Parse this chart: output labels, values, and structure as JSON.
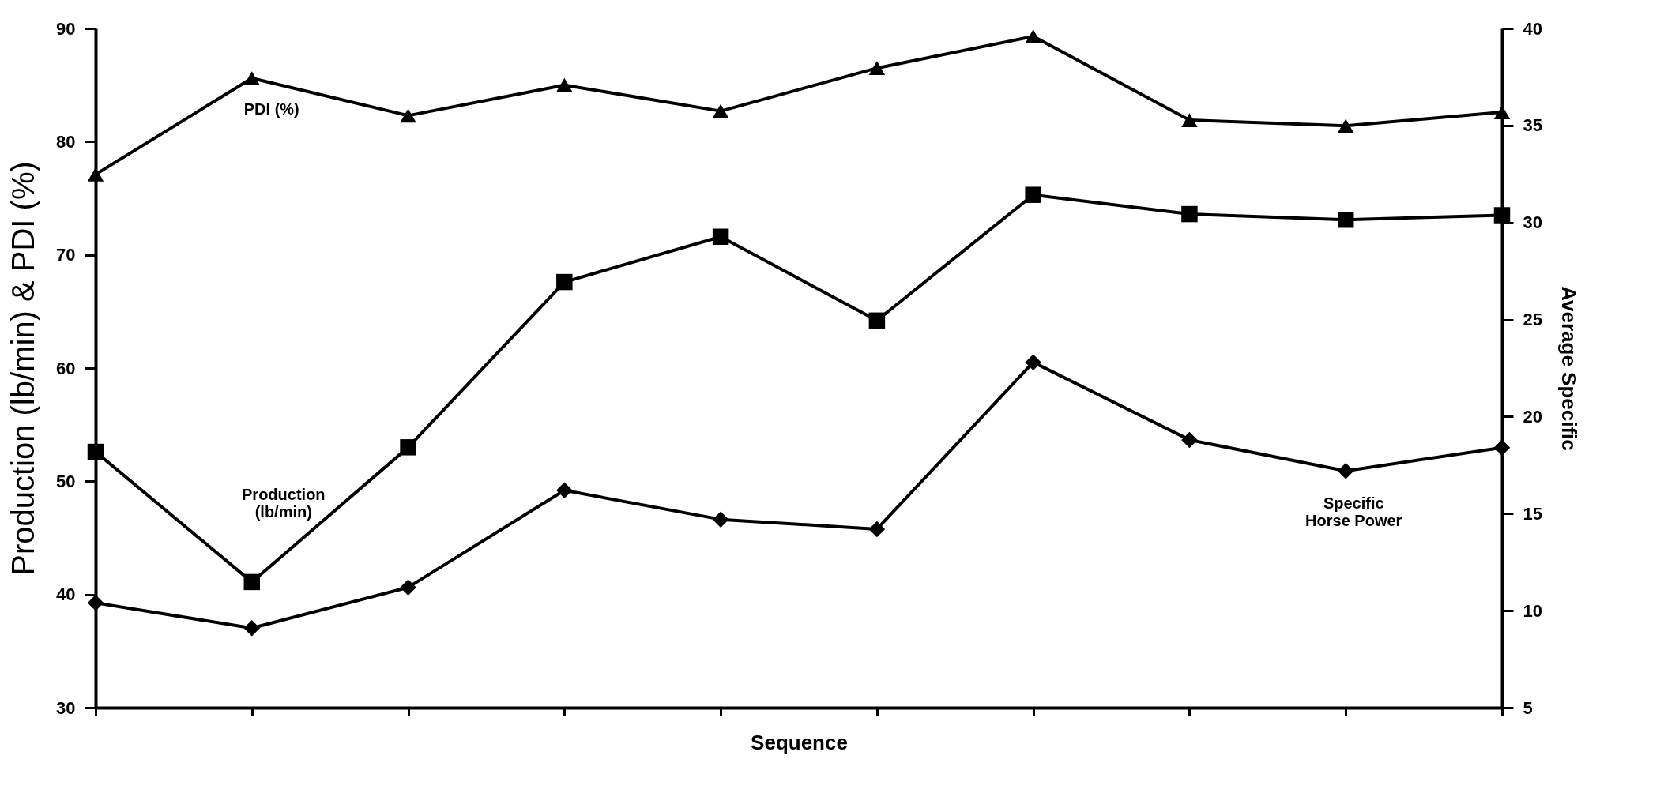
{
  "chart_data": {
    "type": "line",
    "xlabel": "Sequence",
    "ylabel": "Production (lb/min) & PDI (%)",
    "y2label": "Average Specific",
    "categories": [
      null,
      null,
      null,
      null,
      null,
      null,
      null,
      null,
      null,
      null
    ],
    "series": [
      {
        "name": "PDI (%)",
        "color": "#000000",
        "marker": "triangle",
        "values": [
          77.1,
          85.6,
          82.3,
          85.0,
          82.7,
          86.5,
          89.3,
          81.9,
          81.4,
          82.6
        ]
      },
      {
        "name": "Production (lb/min)",
        "color": "#000000",
        "marker": "square",
        "values": [
          52.6,
          41.1,
          53.0,
          67.6,
          71.6,
          64.2,
          75.3,
          73.6,
          73.1,
          73.5
        ]
      },
      {
        "name": "Specific Horse Power",
        "color": "#000000",
        "marker": "diamond",
        "axis": "y2",
        "values": [
          10.4,
          9.1,
          11.2,
          16.2,
          14.7,
          14.2,
          22.8,
          18.8,
          17.2,
          18.4
        ]
      }
    ],
    "ylim": [
      30,
      90
    ],
    "yticks": [
      30,
      40,
      50,
      60,
      70,
      80,
      90
    ],
    "y2lim": [
      5,
      40
    ],
    "y2ticks": [
      5,
      10,
      15,
      20,
      25,
      30,
      35,
      40
    ],
    "tick_labels": "y",
    "grid": false,
    "line_style": "solid"
  }
}
